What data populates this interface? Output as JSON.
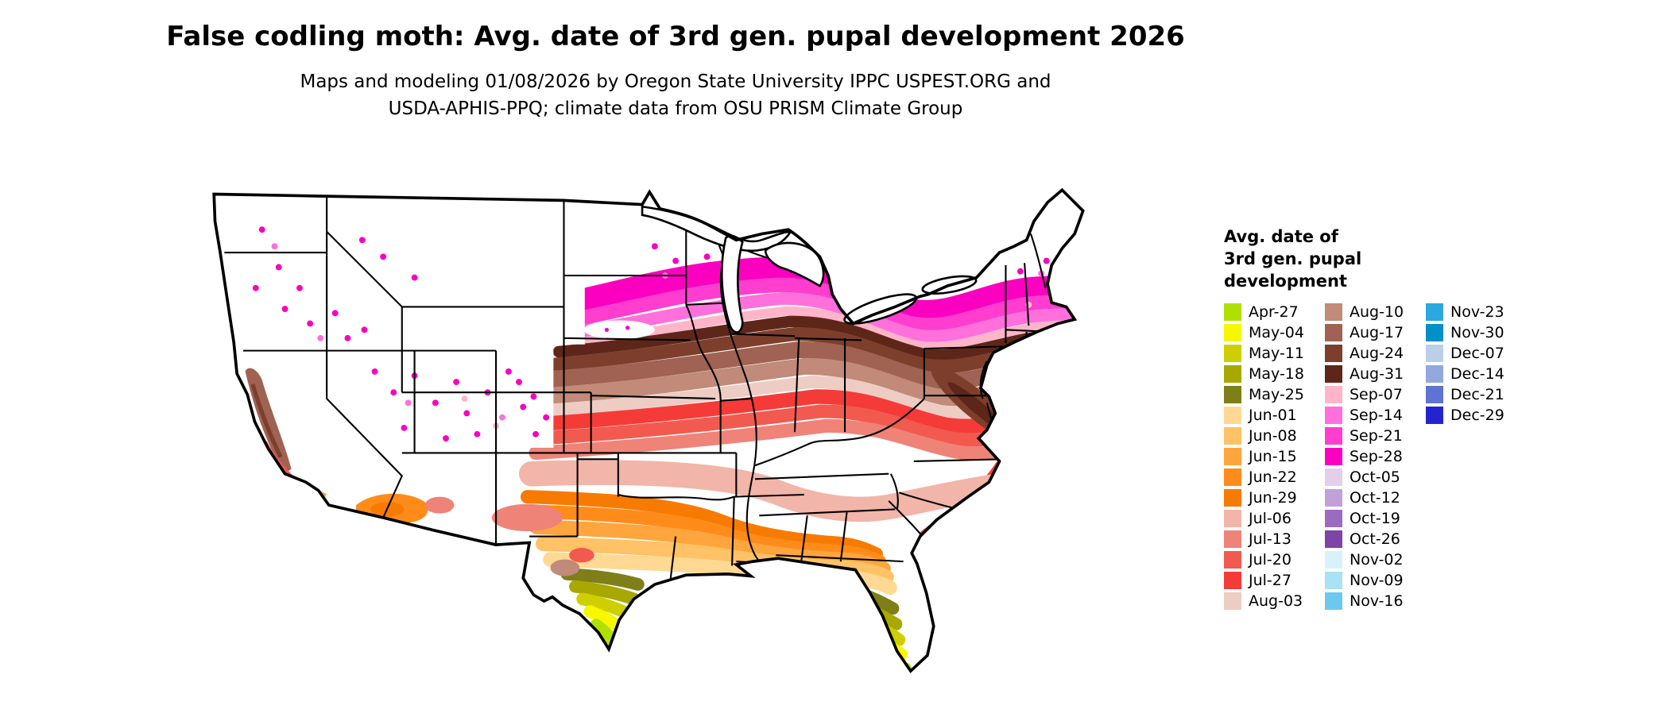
{
  "title": "False codling moth: Avg. date of 3rd gen. pupal development 2026",
  "subtitle_line1": "Maps and modeling 01/08/2026 by Oregon State University IPPC USPEST.ORG and",
  "subtitle_line2": "USDA-APHIS-PPQ; climate data from OSU PRISM Climate Group",
  "legend": {
    "title_lines": [
      "Avg. date of",
      "3rd gen. pupal",
      "development"
    ],
    "columns": [
      [
        {
          "label": "Apr-27",
          "color": "#b0e000"
        },
        {
          "label": "May-04",
          "color": "#f7f700"
        },
        {
          "label": "May-11",
          "color": "#cfcf00"
        },
        {
          "label": "May-18",
          "color": "#a8a800"
        },
        {
          "label": "May-25",
          "color": "#7f7f19"
        },
        {
          "label": "Jun-01",
          "color": "#ffd993"
        },
        {
          "label": "Jun-08",
          "color": "#ffc266"
        },
        {
          "label": "Jun-15",
          "color": "#ffa53d"
        },
        {
          "label": "Jun-22",
          "color": "#ff8c1a"
        },
        {
          "label": "Jun-29",
          "color": "#f77b00"
        },
        {
          "label": "Jul-06",
          "color": "#f2b5a9"
        },
        {
          "label": "Jul-13",
          "color": "#ef8378"
        },
        {
          "label": "Jul-20",
          "color": "#f25a50"
        },
        {
          "label": "Jul-27",
          "color": "#f53b38"
        },
        {
          "label": "Aug-03",
          "color": "#edccc4"
        }
      ],
      [
        {
          "label": "Aug-10",
          "color": "#c18a79"
        },
        {
          "label": "Aug-17",
          "color": "#a06252"
        },
        {
          "label": "Aug-24",
          "color": "#7d3f2c"
        },
        {
          "label": "Aug-31",
          "color": "#5e2619"
        },
        {
          "label": "Sep-07",
          "color": "#ffb5c9"
        },
        {
          "label": "Sep-14",
          "color": "#ff70dc"
        },
        {
          "label": "Sep-21",
          "color": "#ff3ecf"
        },
        {
          "label": "Sep-28",
          "color": "#fb00c0"
        },
        {
          "label": "Oct-05",
          "color": "#e4cfe9"
        },
        {
          "label": "Oct-12",
          "color": "#c2a0da"
        },
        {
          "label": "Oct-19",
          "color": "#9a6cc0"
        },
        {
          "label": "Oct-26",
          "color": "#7e44a8"
        },
        {
          "label": "Nov-02",
          "color": "#d8f2fb"
        },
        {
          "label": "Nov-09",
          "color": "#a8e2f5"
        },
        {
          "label": "Nov-16",
          "color": "#6cc8ec"
        }
      ],
      [
        {
          "label": "Nov-23",
          "color": "#2ba8de"
        },
        {
          "label": "Nov-30",
          "color": "#008fc9"
        },
        {
          "label": "Dec-07",
          "color": "#bccfe9"
        },
        {
          "label": "Dec-14",
          "color": "#93a8de"
        },
        {
          "label": "Dec-21",
          "color": "#5f74d2"
        },
        {
          "label": "Dec-29",
          "color": "#2424cf"
        }
      ]
    ]
  }
}
